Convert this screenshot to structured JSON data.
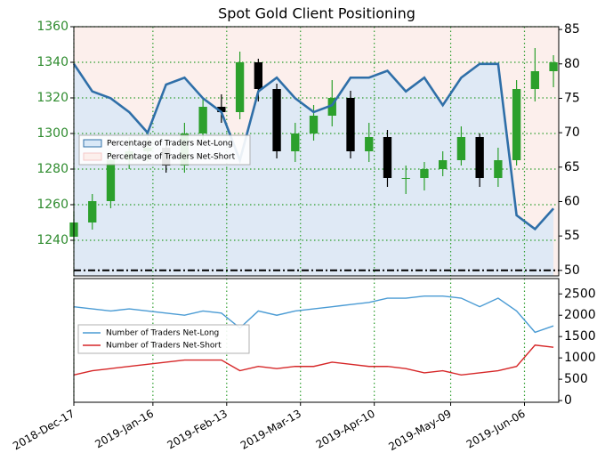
{
  "chart_data": [
    {
      "type": "candlestick",
      "title": "Spot Gold Client Positioning",
      "x": [
        "2018-12-17",
        "2018-12-24",
        "2018-12-31",
        "2019-01-07",
        "2019-01-14",
        "2019-01-21",
        "2019-01-28",
        "2019-02-04",
        "2019-02-11",
        "2019-02-18",
        "2019-02-25",
        "2019-03-04",
        "2019-03-11",
        "2019-03-18",
        "2019-03-25",
        "2019-04-01",
        "2019-04-08",
        "2019-04-15",
        "2019-04-22",
        "2019-04-29",
        "2019-05-06",
        "2019-05-13",
        "2019-05-20",
        "2019-05-27",
        "2019-06-03",
        "2019-06-10",
        "2019-06-17"
      ],
      "open": [
        1242,
        1250,
        1262,
        1285,
        1290,
        1292,
        1282,
        1300,
        1315,
        1312,
        1340,
        1325,
        1290,
        1300,
        1310,
        1320,
        1290,
        1298,
        1275,
        1275,
        1280,
        1285,
        1298,
        1275,
        1285,
        1325,
        1335
      ],
      "high": [
        1256,
        1266,
        1290,
        1298,
        1298,
        1296,
        1306,
        1320,
        1322,
        1346,
        1342,
        1328,
        1306,
        1316,
        1330,
        1324,
        1306,
        1302,
        1282,
        1284,
        1290,
        1304,
        1300,
        1292,
        1330,
        1348,
        1344
      ],
      "low": [
        1238,
        1246,
        1258,
        1280,
        1284,
        1278,
        1278,
        1296,
        1306,
        1308,
        1318,
        1286,
        1284,
        1296,
        1304,
        1286,
        1284,
        1270,
        1266,
        1268,
        1276,
        1282,
        1270,
        1270,
        1282,
        1318,
        1326
      ],
      "close": [
        1250,
        1262,
        1285,
        1290,
        1292,
        1282,
        1300,
        1315,
        1312,
        1340,
        1325,
        1290,
        1300,
        1310,
        1320,
        1290,
        1298,
        1275,
        1275,
        1280,
        1285,
        1298,
        1275,
        1285,
        1325,
        1335,
        1340
      ],
      "up_color": "#2ca02c",
      "down_color": "#000000",
      "ylim": [
        1220,
        1360
      ],
      "yticks": [
        1240,
        1260,
        1280,
        1300,
        1320,
        1340,
        1360
      ],
      "ytick_color": "#2e8b2e",
      "y2lim": [
        49.2,
        85.4
      ],
      "y2ticks": [
        50,
        55,
        60,
        65,
        70,
        75,
        80,
        85
      ],
      "reference_line": 50,
      "grid": true,
      "grid_color": "#2e9e2e",
      "series": [
        {
          "name": "Percentage of Traders Net-Long",
          "color": "#2f6fa8",
          "fill": "#d9e8f7",
          "axis": "y2",
          "values": [
            80,
            76,
            75,
            73,
            70,
            77,
            78,
            75,
            73,
            66,
            76,
            78,
            75,
            73,
            74,
            78,
            78,
            79,
            76,
            78,
            74,
            78,
            80,
            80,
            58,
            56,
            59
          ]
        },
        {
          "name": "Percentage of Traders Net-Short",
          "color": "#f6c9c9",
          "fill": "#fcefec"
        }
      ]
    },
    {
      "type": "line",
      "xlim": [
        "2018-12-17",
        "2019-06-19"
      ],
      "xticks": [
        {
          "value": "2018-12-17",
          "label": "2018-Dec-17"
        },
        {
          "value": "2019-01-16",
          "label": "2019-Jan-16"
        },
        {
          "value": "2019-02-13",
          "label": "2019-Feb-13"
        },
        {
          "value": "2019-03-13",
          "label": "2019-Mar-13"
        },
        {
          "value": "2019-04-10",
          "label": "2019-Apr-10"
        },
        {
          "value": "2019-05-09",
          "label": "2019-May-09"
        },
        {
          "value": "2019-06-06",
          "label": "2019-Jun-06"
        }
      ],
      "ylim": [
        -40,
        2860
      ],
      "yticks": [
        0,
        500,
        1000,
        1500,
        2000,
        2500
      ],
      "series": [
        {
          "name": "Number of Traders Net-Long",
          "color": "#4a9bd4",
          "values": [
            2200,
            2150,
            2100,
            2150,
            2100,
            2050,
            2000,
            2100,
            2050,
            1700,
            2100,
            2000,
            2100,
            2150,
            2200,
            2250,
            2300,
            2400,
            2400,
            2450,
            2450,
            2400,
            2200,
            2400,
            2100,
            1600,
            1750
          ]
        },
        {
          "name": "Number of Traders Net-Short",
          "color": "#d62728",
          "values": [
            600,
            700,
            750,
            800,
            850,
            900,
            950,
            950,
            950,
            700,
            800,
            750,
            800,
            800,
            900,
            850,
            800,
            800,
            750,
            650,
            700,
            600,
            650,
            700,
            800,
            1300,
            1250
          ]
        }
      ]
    }
  ]
}
